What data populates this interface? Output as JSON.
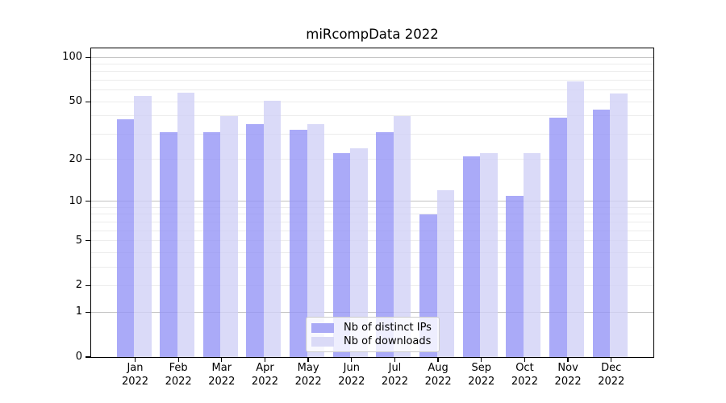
{
  "chart_data": {
    "type": "bar",
    "title": "miRcompData 2022",
    "x": {
      "categories": [
        "Jan",
        "Feb",
        "Mar",
        "Apr",
        "May",
        "Jun",
        "Jul",
        "Aug",
        "Sep",
        "Oct",
        "Nov",
        "Dec"
      ],
      "year": "2022"
    },
    "series": [
      {
        "name": "Nb of distinct IPs",
        "values": [
          38,
          31,
          31,
          35,
          32,
          22,
          31,
          8,
          21,
          11,
          39,
          44
        ],
        "color": "#aaaaf6",
        "rgba": "rgba(149,149,246,0.8)"
      },
      {
        "name": "Nb of downloads",
        "values": [
          55,
          58,
          40,
          51,
          35,
          24,
          40,
          12,
          22,
          22,
          69,
          57
        ],
        "color": "#dadaf7",
        "rgba": "rgba(209,209,246,0.8)"
      }
    ],
    "y_axis": {
      "scale": "log1p",
      "tick_values": [
        0,
        1,
        2,
        5,
        10,
        20,
        50,
        100
      ],
      "minor_gridlines": [
        2,
        3,
        4,
        5,
        6,
        7,
        8,
        9,
        20,
        30,
        40,
        50,
        60,
        70,
        80,
        90
      ],
      "major_gridlines": [
        1,
        10,
        100
      ],
      "range": [
        0,
        115
      ],
      "minor_grid_color": "#ececec",
      "major_grid_color": "#c2c2c2"
    },
    "legend": {
      "position": "bottom-center",
      "entries": [
        "Nb of distinct IPs",
        "Nb of downloads"
      ]
    }
  }
}
